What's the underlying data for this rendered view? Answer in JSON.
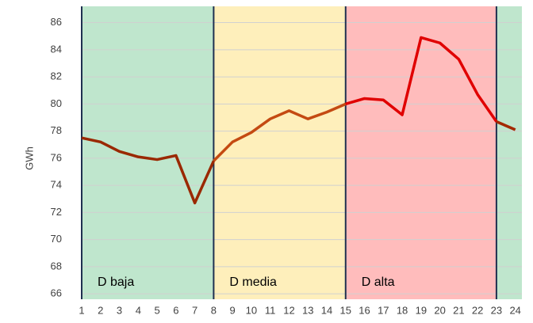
{
  "chart_data": {
    "type": "line",
    "y_label": "GWh",
    "x": [
      1,
      2,
      3,
      4,
      5,
      6,
      7,
      8,
      9,
      10,
      11,
      12,
      13,
      14,
      15,
      16,
      17,
      18,
      19,
      20,
      21,
      22,
      23,
      24
    ],
    "series": [
      {
        "values": [
          77.5,
          77.2,
          76.5,
          76.1,
          75.9,
          76.2,
          72.7,
          75.8,
          77.2,
          77.9,
          78.9,
          79.5,
          78.9,
          79.4,
          80.0,
          80.4,
          80.3,
          79.2,
          84.9,
          84.5,
          83.3,
          80.7,
          78.7,
          78.1
        ]
      }
    ],
    "xlim": [
      1,
      24.35
    ],
    "xticks": [
      1,
      2,
      3,
      4,
      5,
      6,
      7,
      8,
      9,
      10,
      11,
      12,
      13,
      14,
      15,
      16,
      17,
      18,
      19,
      20,
      21,
      22,
      23,
      24
    ],
    "ylim": [
      65.6,
      87.2
    ],
    "yticks": [
      66,
      68,
      70,
      72,
      74,
      76,
      78,
      80,
      82,
      84,
      86
    ],
    "grid": true,
    "bands": [
      {
        "label": "D baja",
        "from": 1,
        "to": 8,
        "color": "#bfe6cd",
        "line_color": "#9a2800"
      },
      {
        "label": "D media",
        "from": 8,
        "to": 15,
        "color": "#feefbb",
        "line_color": "#c44a12"
      },
      {
        "label": "D alta",
        "from": 15,
        "to": 23,
        "color": "#ffbcbc",
        "line_color": "#e00000"
      },
      {
        "from": 23,
        "to": 24.35,
        "color": "#bfe6cd",
        "line_color": "#a32a00"
      }
    ]
  }
}
